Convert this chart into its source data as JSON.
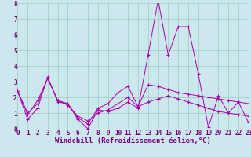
{
  "xlabel": "Windchill (Refroidissement éolien,°C)",
  "bg_color": "#cce8ee",
  "grid_color": "#99ccbb",
  "line_color": "#aa00aa",
  "x_min": 0,
  "x_max": 23,
  "y_min": 0,
  "y_max": 8,
  "line1_x": [
    0,
    1,
    2,
    3,
    4,
    5,
    6,
    7,
    8,
    9,
    10,
    11,
    12,
    13,
    14,
    15,
    16,
    17,
    18,
    19,
    20,
    21,
    22,
    23
  ],
  "line1_y": [
    2.4,
    0.6,
    1.3,
    3.3,
    1.7,
    1.6,
    0.6,
    0.0,
    1.2,
    1.1,
    1.3,
    1.7,
    1.3,
    4.7,
    8.2,
    4.7,
    6.5,
    6.5,
    3.5,
    0.1,
    2.1,
    1.0,
    1.7,
    0.4
  ],
  "line2_x": [
    0,
    1,
    2,
    3,
    4,
    5,
    6,
    7,
    8,
    9,
    10,
    11,
    12,
    13,
    14,
    15,
    16,
    17,
    18,
    19,
    20,
    21,
    22,
    23
  ],
  "line2_y": [
    2.4,
    0.9,
    1.8,
    3.2,
    1.8,
    1.6,
    0.7,
    0.3,
    1.3,
    1.6,
    2.3,
    2.7,
    1.4,
    2.8,
    2.7,
    2.5,
    2.3,
    2.2,
    2.1,
    2.0,
    1.9,
    1.8,
    1.7,
    1.6
  ],
  "line3_x": [
    0,
    1,
    2,
    3,
    4,
    5,
    6,
    7,
    8,
    9,
    10,
    11,
    12,
    13,
    14,
    15,
    16,
    17,
    18,
    19,
    20,
    21,
    22,
    23
  ],
  "line3_y": [
    2.4,
    1.0,
    1.6,
    3.2,
    1.8,
    1.5,
    0.8,
    0.5,
    1.0,
    1.2,
    1.6,
    2.0,
    1.4,
    1.7,
    1.9,
    2.1,
    1.9,
    1.7,
    1.5,
    1.3,
    1.1,
    1.0,
    0.9,
    0.8
  ],
  "xlabel_fontsize": 6.5,
  "tick_fontsize": 5.5,
  "label_color": "#770077"
}
